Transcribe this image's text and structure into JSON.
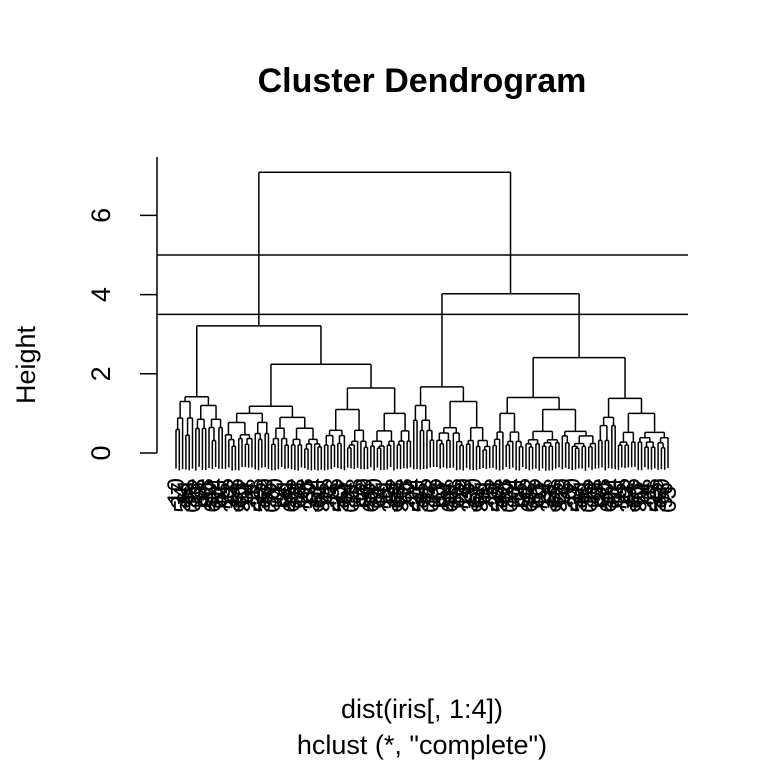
{
  "chart_data": {
    "type": "dendrogram",
    "title": "Cluster Dendrogram",
    "ylabel": "Height",
    "xlabel": "dist(iris[, 1:4])",
    "sub": "hclust (*, \"complete\")",
    "ylim": [
      0,
      7.1
    ],
    "yticks": [
      0,
      2,
      4,
      6
    ],
    "cut_lines": [
      5.0,
      3.5
    ],
    "leaf_count": 150,
    "top_merges": [
      {
        "height": 7.09,
        "children": [
          "cluster-1",
          "cluster-2"
        ]
      },
      {
        "height": 4.02,
        "cluster": "cluster-2",
        "children": [
          "cluster-2a",
          "cluster-2b"
        ]
      },
      {
        "height": 3.21,
        "cluster": "cluster-1",
        "children": [
          "cluster-1a",
          "cluster-1b"
        ]
      },
      {
        "height": 2.24,
        "cluster": "cluster-1b"
      },
      {
        "height": 2.41,
        "cluster": "cluster-2b"
      },
      {
        "height": 1.67,
        "cluster": "cluster-2a"
      },
      {
        "height": 1.42,
        "cluster": "cluster-1a"
      },
      {
        "height": 1.4,
        "cluster": "cluster-2b-left"
      },
      {
        "height": 1.38,
        "cluster": "cluster-2b-right"
      },
      {
        "height": 1.64,
        "cluster": "cluster-1b-right"
      },
      {
        "height": 1.18,
        "cluster": "cluster-1b-left"
      }
    ],
    "visible_leaf_labels": [
      "1",
      "3",
      "5",
      "6",
      "9",
      "0",
      "7",
      "2"
    ]
  }
}
